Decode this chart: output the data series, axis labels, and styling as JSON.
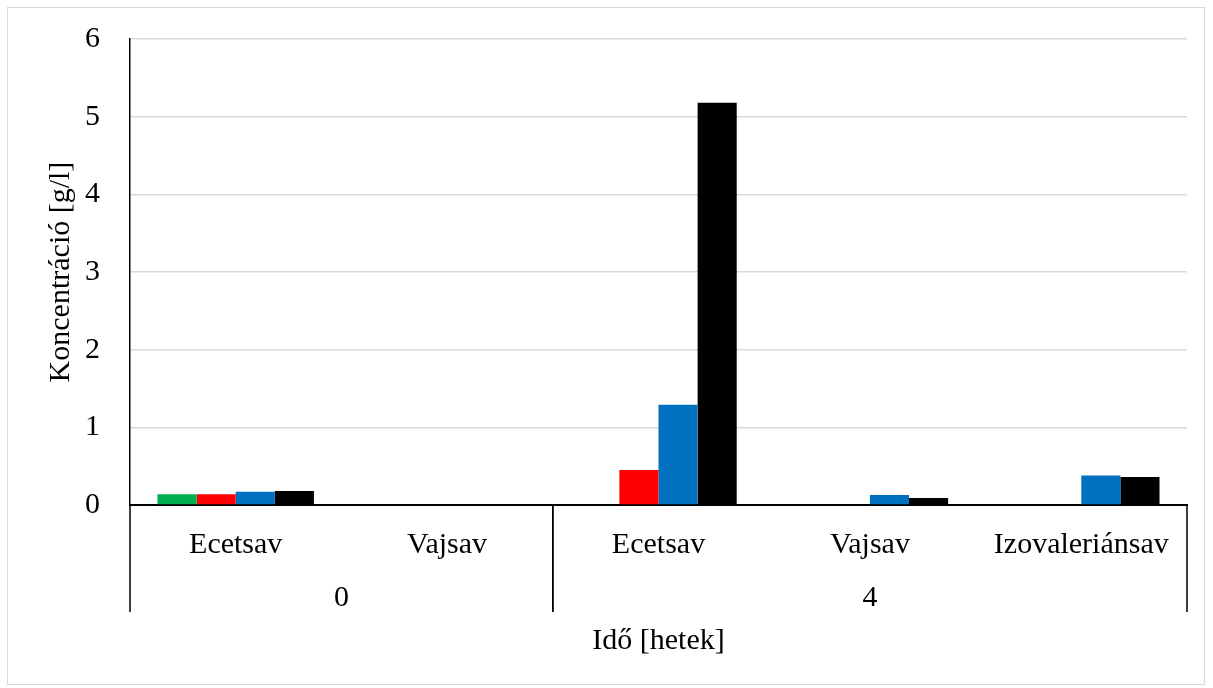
{
  "chart_data": {
    "type": "bar",
    "xlabel": "Idő [hetek]",
    "ylabel": "Koncentráció [g/l]",
    "categories": [
      "Ecetsav",
      "Vajsav",
      "Ecetsav",
      "Vajsav",
      "Izovaleriánsav"
    ],
    "series": [
      {
        "color": "#00b050",
        "values": [
          0.14,
          null,
          null,
          null,
          null
        ]
      },
      {
        "color": "#ff0000",
        "values": [
          0.14,
          null,
          0.45,
          null,
          null
        ]
      },
      {
        "color": "#0070c0",
        "values": [
          0.17,
          null,
          1.29,
          0.13,
          0.38
        ]
      },
      {
        "color": "#000000",
        "values": [
          0.18,
          null,
          5.18,
          0.09,
          0.36
        ]
      }
    ],
    "ylim": [
      0,
      6
    ],
    "yticks": [
      0,
      1,
      2,
      3,
      4,
      5,
      6
    ],
    "grid": "y",
    "annotations": [
      "0",
      "4"
    ]
  }
}
